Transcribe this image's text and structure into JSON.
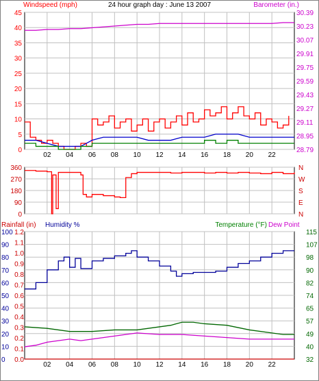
{
  "title": "24 hour graph day : June 13 2007",
  "colors": {
    "wind": "#ff0000",
    "gust": "#0000cc",
    "wind_avg": "#008000",
    "baro": "#cc00cc",
    "temp": "#006600",
    "dew": "#cc00cc",
    "hum": "#000099",
    "rain": "#cc0000",
    "grid": "#c0c0c0"
  },
  "x_ticks": [
    "02",
    "04",
    "06",
    "08",
    "10",
    "12",
    "14",
    "16",
    "18",
    "20",
    "22"
  ],
  "chart_data": [
    {
      "type": "line",
      "panel": "wind-baro",
      "left_axis_label": "Windspeed (mph)",
      "right_axis_label": "Barometer (in.)",
      "left_ticks": [
        "0",
        "5",
        "10",
        "15",
        "20",
        "25",
        "30",
        "35",
        "40",
        "45"
      ],
      "right_ticks": [
        "28.79",
        "28.95",
        "29.11",
        "29.27",
        "29.43",
        "29.59",
        "29.75",
        "29.91",
        "30.07",
        "30.23",
        "30.39"
      ],
      "ylim_left": [
        0,
        45
      ],
      "ylim_right": [
        28.79,
        30.39
      ],
      "xlim": [
        0,
        24
      ],
      "series": [
        {
          "key": "baro",
          "axis": "right",
          "x": [
            0,
            1,
            2,
            3,
            4,
            5,
            6,
            7,
            8,
            9,
            10,
            11,
            12,
            13,
            14,
            15,
            16,
            17,
            18,
            19,
            20,
            21,
            22,
            23,
            24
          ],
          "values": [
            30.18,
            30.18,
            30.19,
            30.19,
            30.2,
            30.2,
            30.21,
            30.22,
            30.23,
            30.24,
            30.25,
            30.25,
            30.26,
            30.26,
            30.26,
            30.26,
            30.26,
            30.26,
            30.26,
            30.26,
            30.26,
            30.26,
            30.26,
            30.27,
            30.27
          ]
        },
        {
          "key": "wind",
          "axis": "left",
          "x": [
            0,
            0.5,
            1,
            1.5,
            2,
            2.5,
            3,
            3.5,
            4,
            4.5,
            5,
            5.5,
            6,
            6.5,
            7,
            7.5,
            8,
            8.5,
            9,
            9.5,
            10,
            10.5,
            11,
            11.5,
            12,
            12.5,
            13,
            13.5,
            14,
            14.5,
            15,
            15.5,
            16,
            16.5,
            17,
            17.5,
            18,
            18.5,
            19,
            19.5,
            20,
            20.5,
            21,
            21.5,
            22,
            22.5,
            23,
            23.5
          ],
          "values": [
            9,
            4,
            3,
            2,
            3,
            2,
            1,
            0,
            0,
            1,
            2,
            1,
            10,
            8,
            9,
            11,
            7,
            9,
            10,
            6,
            8,
            10,
            6,
            9,
            10,
            7,
            9,
            11,
            8,
            12,
            9,
            10,
            13,
            11,
            12,
            14,
            10,
            12,
            14,
            11,
            10,
            12,
            8,
            10,
            9,
            7,
            8,
            11
          ]
        },
        {
          "key": "gust",
          "axis": "left",
          "x": [
            0,
            1,
            2,
            3,
            4,
            5,
            6,
            7,
            8,
            9,
            10,
            11,
            12,
            13,
            14,
            15,
            16,
            17,
            18,
            19,
            20,
            21,
            22,
            23,
            24
          ],
          "values": [
            3,
            3,
            2,
            1,
            1,
            1,
            3,
            4,
            4,
            4,
            4,
            3,
            3,
            3,
            4,
            4,
            4,
            5,
            5,
            5,
            4,
            4,
            4,
            4,
            4
          ]
        },
        {
          "key": "wind_avg",
          "axis": "left",
          "x": [
            0,
            1,
            2,
            3,
            4,
            5,
            6,
            7,
            8,
            9,
            10,
            11,
            12,
            13,
            14,
            15,
            16,
            17,
            18,
            19,
            20,
            21,
            22,
            23,
            24
          ],
          "values": [
            2,
            1,
            1,
            0,
            0,
            1,
            2,
            2,
            2,
            2,
            2,
            2,
            2,
            2,
            2,
            2,
            3,
            2,
            3,
            2,
            2,
            2,
            2,
            2,
            2
          ]
        }
      ]
    },
    {
      "type": "line",
      "panel": "wind-direction",
      "left_ticks": [
        "0",
        "90",
        "180",
        "270",
        "360"
      ],
      "right_ticks": [
        "N",
        "W",
        "S",
        "E",
        "N"
      ],
      "ylim": [
        0,
        360
      ],
      "xlim": [
        0,
        24
      ],
      "series": [
        {
          "key": "dir",
          "x": [
            0,
            1,
            2,
            2.4,
            2.5,
            2.8,
            3,
            3.3,
            4,
            5,
            5.2,
            5.5,
            6,
            7,
            8,
            8.5,
            9,
            9.5,
            10,
            11,
            12,
            13,
            14,
            15,
            16,
            17,
            18,
            19,
            20,
            21,
            22,
            23,
            24
          ],
          "values": [
            335,
            330,
            325,
            0,
            300,
            40,
            320,
            320,
            320,
            300,
            150,
            130,
            150,
            140,
            130,
            125,
            280,
            310,
            320,
            320,
            320,
            315,
            320,
            320,
            315,
            320,
            315,
            320,
            315,
            310,
            320,
            310,
            320
          ]
        }
      ]
    },
    {
      "type": "line",
      "panel": "temp-hum-rain",
      "left_axis_label_1": "Rainfall (in)",
      "left_axis_label_2": "Humidity %",
      "right_axis_label_1": "Temperature (°F)",
      "right_axis_label_2": "Dew Point",
      "rain_ticks": [
        "0.0",
        "0.1",
        "0.2",
        "0.3",
        "0.4",
        "0.5",
        "0.6",
        "0.7",
        "0.8",
        "0.9",
        "1.0",
        "1.1",
        "1.2"
      ],
      "hum_ticks": [
        "0",
        "10",
        "20",
        "30",
        "40",
        "50",
        "60",
        "70",
        "80",
        "90",
        "100"
      ],
      "temp_ticks": [
        "32",
        "40",
        "49",
        "57",
        "65",
        "74",
        "82",
        "90",
        "98",
        "107",
        "115"
      ],
      "ylim_hum": [
        0,
        100
      ],
      "ylim_temp": [
        32,
        115
      ],
      "xlim": [
        0,
        24
      ],
      "series": [
        {
          "key": "hum",
          "axis": "hum",
          "x": [
            0,
            1,
            2,
            3,
            3.5,
            4,
            4.5,
            5,
            6,
            7,
            8,
            9,
            9.5,
            10,
            11,
            12,
            13,
            13.5,
            14,
            15,
            16,
            17,
            18,
            19,
            20,
            21,
            22,
            23,
            24
          ],
          "values": [
            55,
            60,
            70,
            77,
            80,
            72,
            79,
            71,
            77,
            79,
            81,
            83,
            85,
            80,
            77,
            73,
            69,
            65,
            67,
            68,
            68,
            69,
            72,
            75,
            77,
            80,
            83,
            85,
            85
          ]
        },
        {
          "key": "temp",
          "axis": "temp",
          "x": [
            0,
            2,
            4,
            6,
            8,
            10,
            12,
            13,
            14,
            15,
            16,
            18,
            20,
            22,
            23,
            24
          ],
          "values": [
            53,
            52,
            50,
            50,
            51,
            51,
            53,
            54,
            56,
            56,
            55,
            54,
            51,
            49,
            48,
            48
          ]
        },
        {
          "key": "dew",
          "axis": "temp",
          "x": [
            0,
            1,
            2,
            3,
            4,
            5,
            6,
            7,
            8,
            9,
            10,
            12,
            14,
            16,
            18,
            20,
            22,
            24
          ],
          "values": [
            40,
            41,
            43,
            44,
            45,
            44,
            45,
            46,
            47,
            48,
            49,
            48,
            48,
            47,
            46,
            45,
            45,
            45
          ]
        },
        {
          "key": "rain",
          "axis": "hum",
          "x": [
            0,
            24
          ],
          "values": [
            0,
            0
          ]
        }
      ]
    }
  ]
}
